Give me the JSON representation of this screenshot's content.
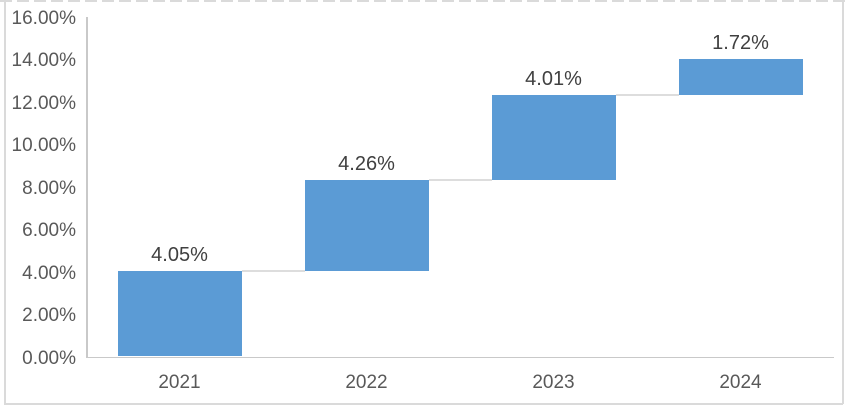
{
  "chart_data": {
    "type": "bar",
    "subtype": "waterfall",
    "title": "",
    "xlabel": "",
    "ylabel": "",
    "grid": false,
    "legend": false,
    "categories": [
      "2021",
      "2022",
      "2023",
      "2024"
    ],
    "values": [
      4.05,
      4.26,
      4.01,
      1.72
    ],
    "cumulative_totals": [
      4.05,
      8.31,
      12.32,
      14.04
    ],
    "data_labels": [
      "4.05%",
      "4.26%",
      "4.01%",
      "1.72%"
    ],
    "ylim": [
      0,
      16
    ],
    "y_ticks": [
      {
        "value": 16,
        "label": "16.00%"
      },
      {
        "value": 14,
        "label": "14.00%"
      },
      {
        "value": 12,
        "label": "12.00%"
      },
      {
        "value": 10,
        "label": "10.00%"
      },
      {
        "value": 8,
        "label": "8.00%"
      },
      {
        "value": 6,
        "label": "6.00%"
      },
      {
        "value": 4,
        "label": "4.00%"
      },
      {
        "value": 2,
        "label": "2.00%"
      },
      {
        "value": 0,
        "label": "0.00%"
      }
    ],
    "colors": {
      "bar": "#5B9BD5",
      "connector": "#DDDDDD",
      "axis_line": "#C9C9C9",
      "tick_text": "#595959",
      "category_text": "#595959",
      "data_label_text": "#404040",
      "frame_border": "#DADADA",
      "background": "#FFFFFF"
    }
  }
}
